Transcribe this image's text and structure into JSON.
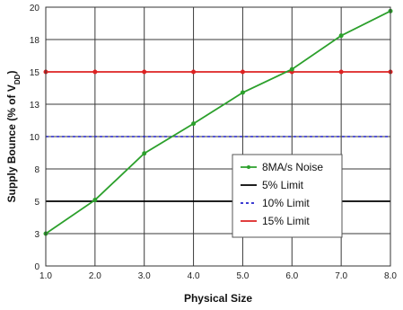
{
  "chart_data": {
    "type": "line",
    "xlabel": "Physical Size",
    "ylabel_main": "Supply Bounce (% of V",
    "ylabel_sub": "DD",
    "ylabel_close": ")",
    "xlim": [
      1.0,
      8.0
    ],
    "ylim": [
      0,
      20
    ],
    "x_ticks": [
      1.0,
      2.0,
      3.0,
      4.0,
      5.0,
      6.0,
      7.0,
      8.0
    ],
    "x_tick_labels": [
      "1.0",
      "2.0",
      "3.0",
      "4.0",
      "5.0",
      "6.0",
      "7.0",
      "8.0"
    ],
    "y_ticks": [
      0,
      2.5,
      5,
      7.5,
      10,
      12.5,
      15,
      17.5,
      20
    ],
    "y_tick_labels": [
      "0",
      "3",
      "5",
      "8",
      "10",
      "13",
      "15",
      "18",
      "20"
    ],
    "grid": true,
    "legend_position": "lower-right",
    "series": [
      {
        "name": "8MA/s Noise",
        "color": "#2ca02c",
        "style": "solid",
        "markers": true,
        "points": [
          [
            1.0,
            2.5
          ],
          [
            2.0,
            5.1
          ],
          [
            3.0,
            8.7
          ],
          [
            4.0,
            11.0
          ],
          [
            5.0,
            13.4
          ],
          [
            6.0,
            15.2
          ],
          [
            7.0,
            17.8
          ],
          [
            8.0,
            19.7
          ]
        ]
      },
      {
        "name": "5% Limit",
        "color": "#000000",
        "style": "solid",
        "markers": false,
        "points": [
          [
            1.0,
            5
          ],
          [
            8.0,
            5
          ]
        ]
      },
      {
        "name": "10% Limit",
        "color": "#2222cc",
        "style": "dashed",
        "markers": false,
        "points": [
          [
            1.0,
            10
          ],
          [
            8.0,
            10
          ]
        ]
      },
      {
        "name": "15% Limit",
        "color": "#dd2222",
        "style": "solid",
        "markers": true,
        "points": [
          [
            1.0,
            15
          ],
          [
            2.0,
            15
          ],
          [
            3.0,
            15
          ],
          [
            4.0,
            15
          ],
          [
            5.0,
            15
          ],
          [
            6.0,
            15
          ],
          [
            7.0,
            15
          ],
          [
            8.0,
            15
          ]
        ]
      }
    ]
  }
}
